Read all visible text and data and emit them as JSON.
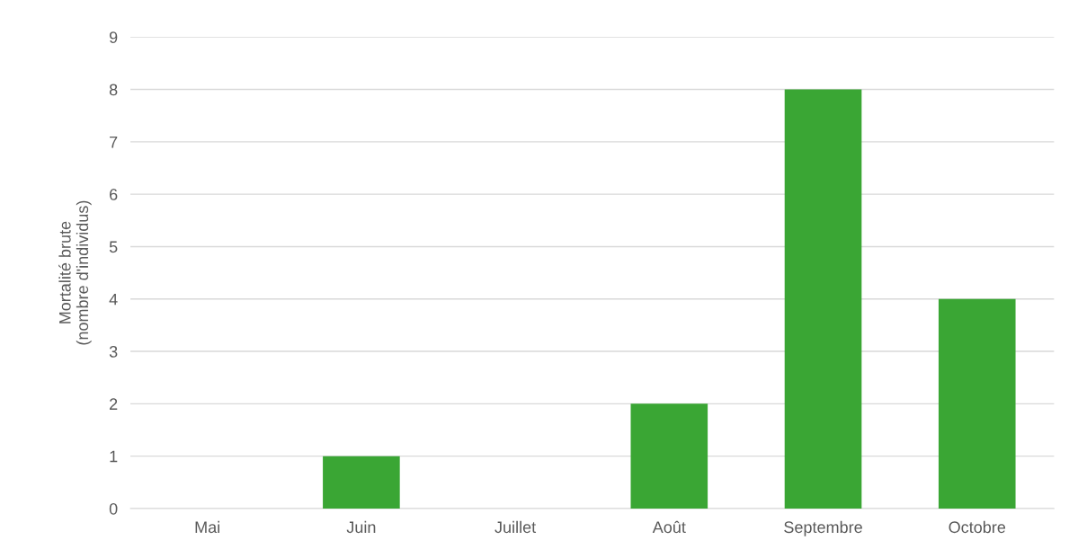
{
  "chart_data": {
    "type": "bar",
    "ylabel": "Mortalité brute\n(nombre d'individus)",
    "categories": [
      "Mai",
      "Juin",
      "Juillet",
      "Août",
      "Septembre",
      "Octobre"
    ],
    "values": [
      0,
      1,
      0,
      2,
      8,
      4
    ],
    "color": "#3aa634",
    "ylim": [
      0,
      9
    ],
    "yticks": [
      0,
      1,
      2,
      3,
      4,
      5,
      6,
      7,
      8,
      9
    ],
    "grid": "y"
  }
}
